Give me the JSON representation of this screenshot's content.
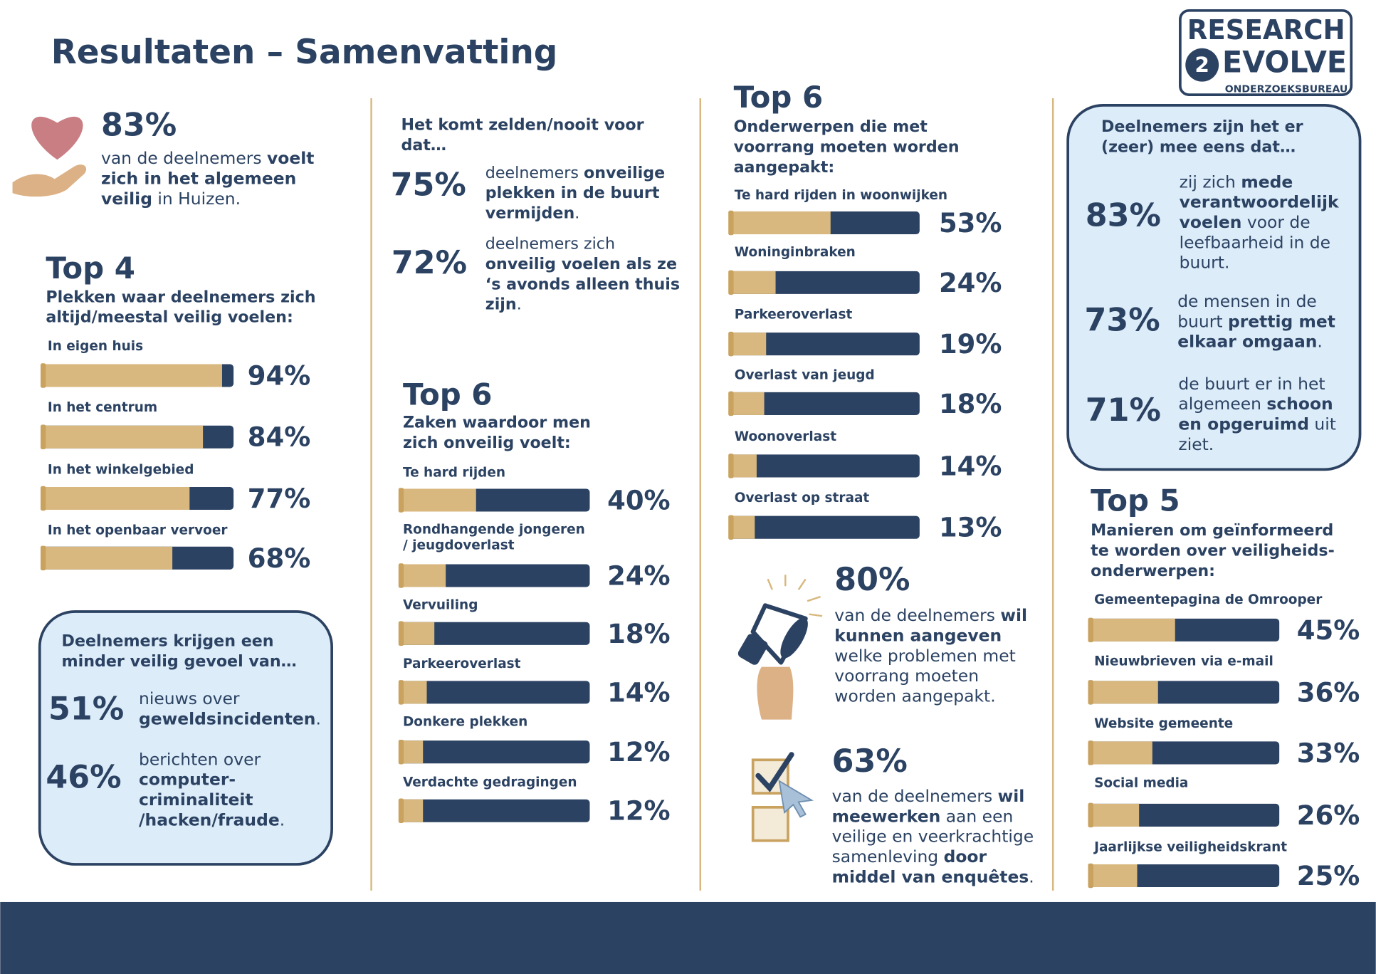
{
  "header": {
    "title": "Resultaten – Samenvatting",
    "logo": {
      "line1": "RESEARCH",
      "circle": "2",
      "line2": "EVOLVE",
      "tagline": "ONDERZOEKSBUREAU"
    }
  },
  "intro": {
    "stat": "83%",
    "lines": [
      [
        {
          "text": "van de deelnemers "
        },
        {
          "text": "voelt",
          "bold": true
        }
      ],
      [
        {
          "text": "zich in het algemeen",
          "bold": true
        }
      ],
      [
        {
          "text": "veilig",
          "bold": true
        },
        {
          "text": " in Huizen."
        }
      ]
    ]
  },
  "top4": {
    "title": "Top 4",
    "subtitle": [
      "Plekken waar deelnemers zich",
      "altijd/meestal veilig voelen:"
    ],
    "xlim": [
      0,
      100
    ],
    "items": [
      {
        "label": [
          "In eigen huis"
        ],
        "value": 94,
        "value_label": "94%"
      },
      {
        "label": [
          "In het centrum"
        ],
        "value": 84,
        "value_label": "84%"
      },
      {
        "label": [
          "In het winkelgebied"
        ],
        "value": 77,
        "value_label": "77%"
      },
      {
        "label": [
          "In het openbaar vervoer"
        ],
        "value": 68,
        "value_label": "68%"
      }
    ]
  },
  "less_safe": {
    "title": [
      "Deelnemers krijgen een",
      "minder veilig gevoel van…"
    ],
    "items": [
      {
        "stat": "51%",
        "lines": [
          [
            {
              "text": "nieuws over"
            }
          ],
          [
            {
              "text": "geweldsincidenten",
              "bold": true
            },
            {
              "text": "."
            }
          ]
        ]
      },
      {
        "stat": "46%",
        "lines": [
          [
            {
              "text": "berichten over"
            }
          ],
          [
            {
              "text": "computer-",
              "bold": true
            }
          ],
          [
            {
              "text": "criminaliteit",
              "bold": true
            }
          ],
          [
            {
              "text": "/hacken/fraude",
              "bold": true
            },
            {
              "text": "."
            }
          ]
        ]
      }
    ]
  },
  "rarely": {
    "title": [
      "Het komt zelden/nooit voor",
      "dat…"
    ],
    "items": [
      {
        "stat": "75%",
        "lines": [
          [
            {
              "text": "deelnemers "
            },
            {
              "text": "onveilige",
              "bold": true
            }
          ],
          [
            {
              "text": "plekken in de buurt",
              "bold": true
            }
          ],
          [
            {
              "text": "vermijden",
              "bold": true
            },
            {
              "text": "."
            }
          ]
        ]
      },
      {
        "stat": "72%",
        "lines": [
          [
            {
              "text": "deelnemers zich"
            }
          ],
          [
            {
              "text": "onveilig voelen als ze",
              "bold": true
            }
          ],
          [
            {
              "text": "‘s avonds alleen thuis",
              "bold": true
            }
          ],
          [
            {
              "text": "zijn",
              "bold": true
            },
            {
              "text": "."
            }
          ]
        ]
      }
    ]
  },
  "top6_unsafe": {
    "title": "Top 6",
    "subtitle": [
      "Zaken waardoor men",
      "zich onveilig voelt:"
    ],
    "xlim": [
      0,
      100
    ],
    "items": [
      {
        "label": [
          "Te hard rijden"
        ],
        "value": 40,
        "value_label": "40%"
      },
      {
        "label": [
          "Rondhangende jongeren",
          "/ jeugdoverlast"
        ],
        "value": 24,
        "value_label": "24%"
      },
      {
        "label": [
          "Vervuiling"
        ],
        "value": 18,
        "value_label": "18%"
      },
      {
        "label": [
          "Parkeeroverlast"
        ],
        "value": 14,
        "value_label": "14%"
      },
      {
        "label": [
          "Donkere plekken"
        ],
        "value": 12,
        "value_label": "12%"
      },
      {
        "label": [
          "Verdachte gedragingen"
        ],
        "value": 12,
        "value_label": "12%"
      }
    ]
  },
  "top6_priority": {
    "title": "Top 6",
    "subtitle": [
      "Onderwerpen die met",
      "voorrang moeten worden",
      "aangepakt:"
    ],
    "xlim": [
      0,
      100
    ],
    "items": [
      {
        "label": [
          "Te hard rijden in woonwijken"
        ],
        "value": 53,
        "value_label": "53%"
      },
      {
        "label": [
          "Woninginbraken"
        ],
        "value": 24,
        "value_label": "24%"
      },
      {
        "label": [
          "Parkeeroverlast"
        ],
        "value": 19,
        "value_label": "19%"
      },
      {
        "label": [
          "Overlast van jeugd"
        ],
        "value": 18,
        "value_label": "18%"
      },
      {
        "label": [
          "Woonoverlast"
        ],
        "value": 14,
        "value_label": "14%"
      },
      {
        "label": [
          "Overlast op straat"
        ],
        "value": 13,
        "value_label": "13%"
      }
    ]
  },
  "participation": {
    "items": [
      {
        "stat": "80%",
        "lines": [
          [
            {
              "text": "van de deelnemers "
            },
            {
              "text": "wil",
              "bold": true
            }
          ],
          [
            {
              "text": "kunnen aangeven",
              "bold": true
            }
          ],
          [
            {
              "text": "welke problemen met"
            }
          ],
          [
            {
              "text": "voorrang moeten"
            }
          ],
          [
            {
              "text": "worden aangepakt."
            }
          ]
        ]
      },
      {
        "stat": "63%",
        "lines": [
          [
            {
              "text": "van de deelnemers "
            },
            {
              "text": "wil",
              "bold": true
            }
          ],
          [
            {
              "text": "meewerken",
              "bold": true
            },
            {
              "text": " aan een"
            }
          ],
          [
            {
              "text": "veilige en veerkrachtige"
            }
          ],
          [
            {
              "text": "samenleving "
            },
            {
              "text": "door",
              "bold": true
            }
          ],
          [
            {
              "text": "middel van enquêtes",
              "bold": true
            },
            {
              "text": "."
            }
          ]
        ]
      }
    ]
  },
  "agree": {
    "title": [
      "Deelnemers zijn het er",
      "(zeer) mee eens dat…"
    ],
    "items": [
      {
        "stat": "83%",
        "lines": [
          [
            {
              "text": "zij zich "
            },
            {
              "text": "mede",
              "bold": true
            }
          ],
          [
            {
              "text": "verantwoordelijk",
              "bold": true
            }
          ],
          [
            {
              "text": "voelen",
              "bold": true
            },
            {
              "text": " voor de"
            }
          ],
          [
            {
              "text": "leefbaarheid in de"
            }
          ],
          [
            {
              "text": "buurt."
            }
          ]
        ]
      },
      {
        "stat": "73%",
        "lines": [
          [
            {
              "text": "de mensen in de"
            }
          ],
          [
            {
              "text": "buurt "
            },
            {
              "text": "prettig met",
              "bold": true
            }
          ],
          [
            {
              "text": "elkaar omgaan",
              "bold": true
            },
            {
              "text": "."
            }
          ]
        ]
      },
      {
        "stat": "71%",
        "lines": [
          [
            {
              "text": "de buurt er in het"
            }
          ],
          [
            {
              "text": "algemeen "
            },
            {
              "text": "schoon",
              "bold": true
            }
          ],
          [
            {
              "text": "en opgeruimd",
              "bold": true
            },
            {
              "text": " uit"
            }
          ],
          [
            {
              "text": "ziet."
            }
          ]
        ]
      }
    ]
  },
  "top5": {
    "title": "Top 5",
    "subtitle": [
      "Manieren om geïnformeerd",
      "te worden over veiligheids-",
      "onderwerpen:"
    ],
    "xlim": [
      0,
      100
    ],
    "items": [
      {
        "label": [
          "Gemeentepagina de Omrooper"
        ],
        "value": 45,
        "value_label": "45%"
      },
      {
        "label": [
          "Nieuwbrieven via e-mail"
        ],
        "value": 36,
        "value_label": "36%"
      },
      {
        "label": [
          "Website gemeente"
        ],
        "value": 33,
        "value_label": "33%"
      },
      {
        "label": [
          "Social media"
        ],
        "value": 26,
        "value_label": "26%"
      },
      {
        "label": [
          "Jaarlijkse veiligheidskrant"
        ],
        "value": 25,
        "value_label": "25%"
      }
    ]
  }
}
